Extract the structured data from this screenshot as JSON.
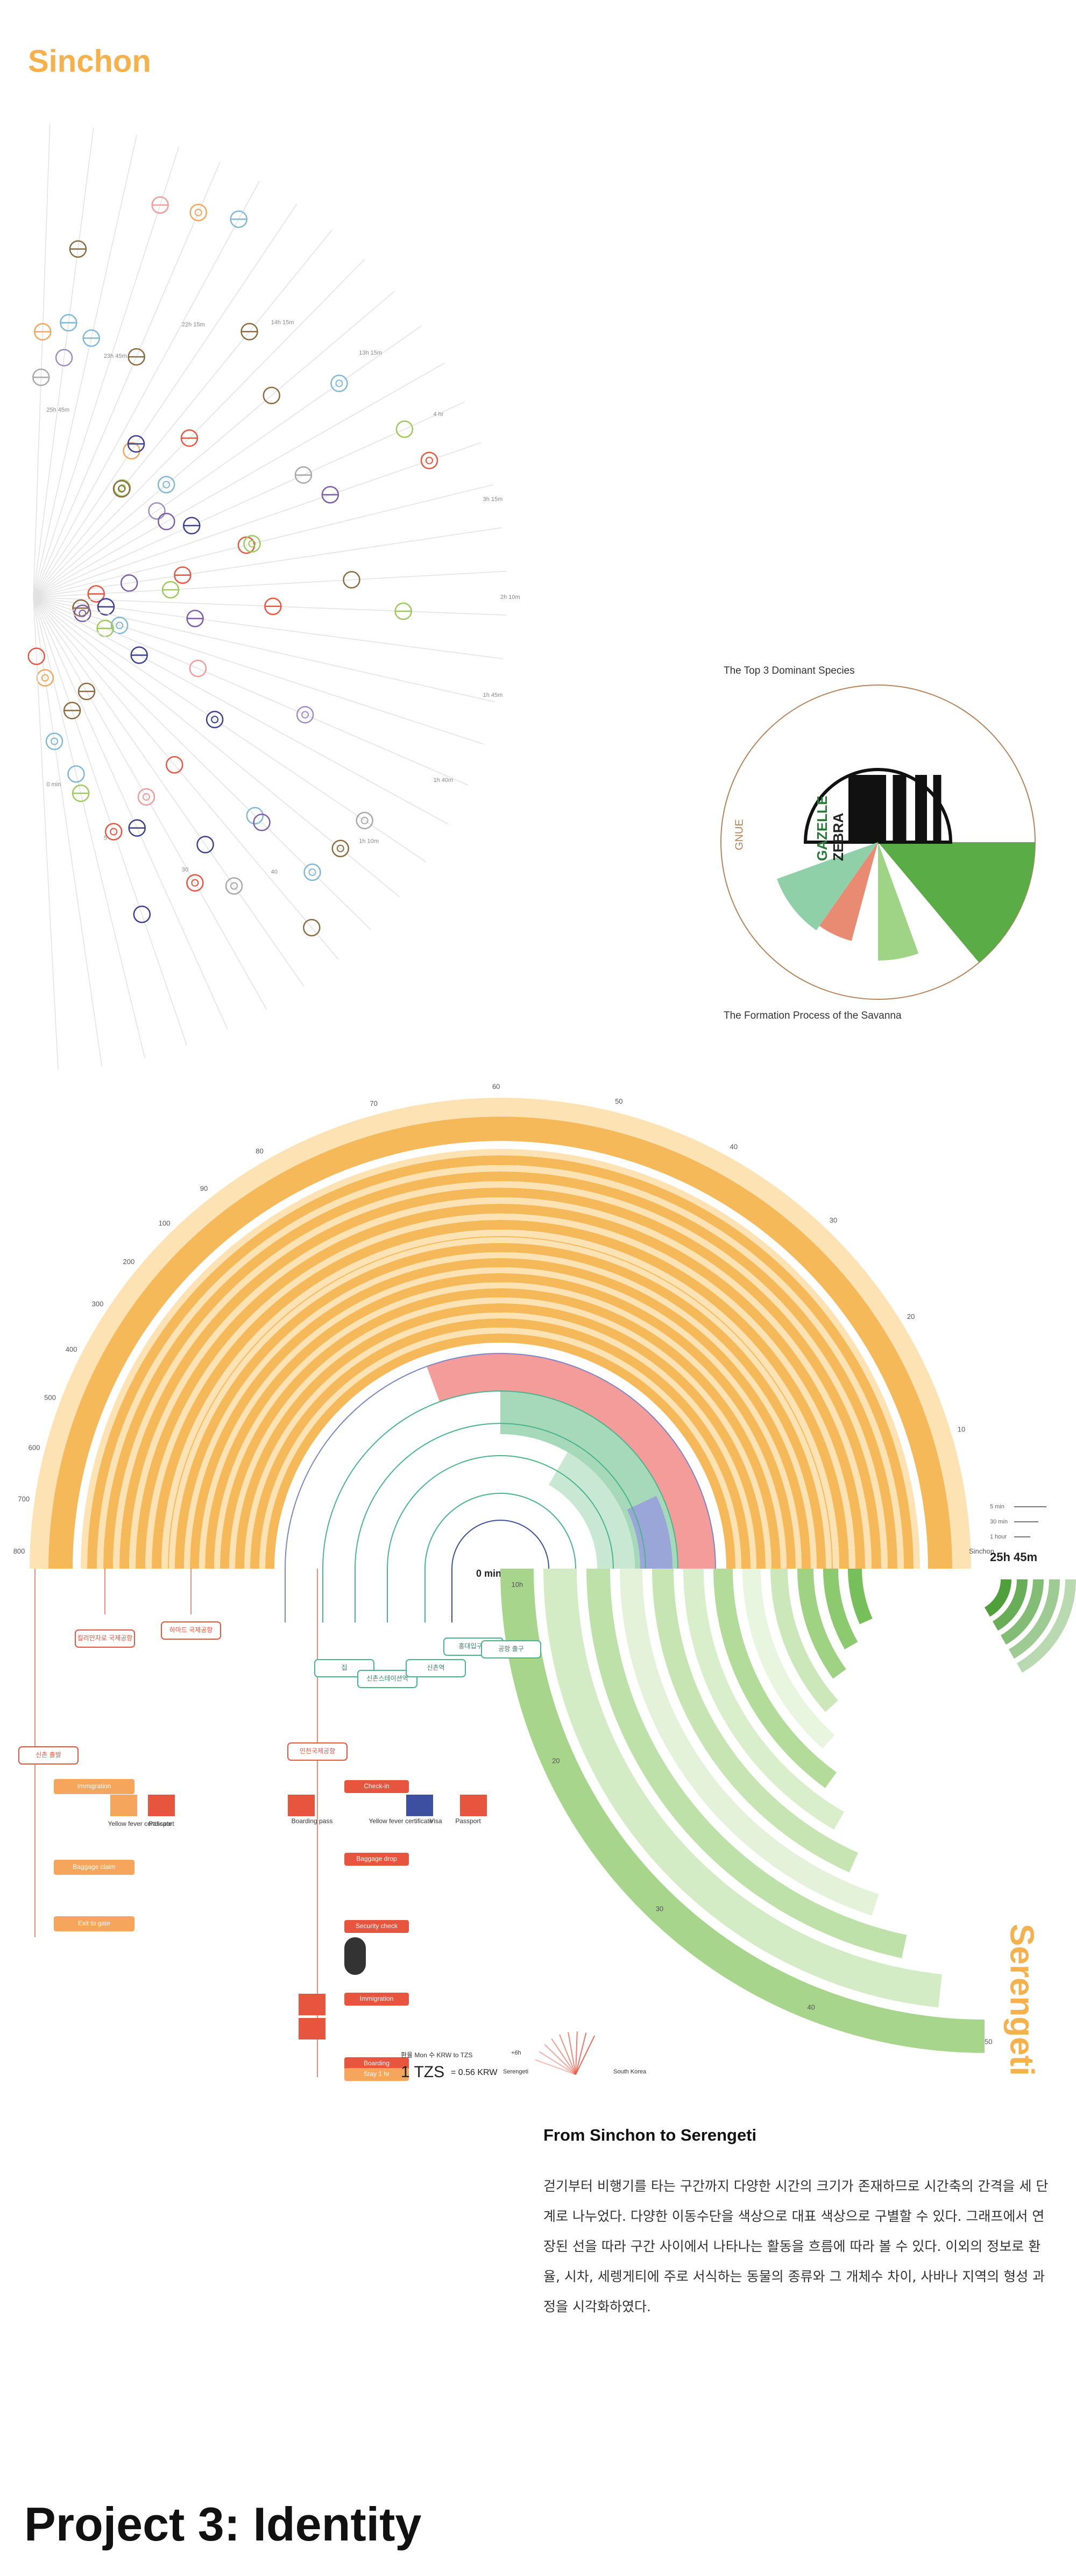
{
  "header": {
    "title": "Sinchon",
    "side_title": "Serengeti"
  },
  "fan": {
    "labels": [
      "25h 45m",
      "23h 45m",
      "22h 15m",
      "14h 15m",
      "13h 15m",
      "4 hr",
      "3h 15m",
      "2h 10m",
      "1h 45m",
      "1h 40m",
      "1h 10m",
      "40",
      "30",
      "5",
      "0 min"
    ]
  },
  "species": {
    "title": "The Top 3 Dominant Species",
    "caption": "The Formation Process of the Savanna",
    "names": [
      "GNUE",
      "GAZELLE",
      "ZEBRA"
    ]
  },
  "arc_scale": {
    "top_labels": [
      "80",
      "70",
      "60",
      "50",
      "40",
      "30",
      "20",
      "10",
      "Sinchon"
    ],
    "left_labels": [
      "90",
      "100",
      "200",
      "300",
      "400",
      "500",
      "600",
      "700",
      "800"
    ],
    "start": "0 min",
    "end": "25h 45m",
    "legend": [
      "5 min",
      "30 min",
      "1 hour"
    ],
    "lower_labels": [
      "10h",
      "20",
      "30",
      "40",
      "50"
    ]
  },
  "timeline": {
    "places": [
      "킬리만자로 국제공항",
      "하마드 국제공항",
      "인천국제공항",
      "집",
      "신촌스테이션역",
      "신촌역",
      "홍대입구역",
      "신촌 출발",
      "공항 출구"
    ],
    "left_steps": [
      "Immigration",
      "Yellow fever certificate",
      "Passport",
      "Baggage claim",
      "Exit to gate"
    ],
    "center_steps": [
      "Check-in",
      "Boarding pass",
      "Yellow fever certificate",
      "Visa",
      "Passport",
      "Baggage drop",
      "Security check",
      "Immigration",
      "Boarding",
      "Stay 1 hr"
    ]
  },
  "exchange": {
    "note": "환율 Mon 수 KRW to TZS",
    "rate_left": "1 TZS",
    "rate_right": "= 0.56 KRW",
    "from": "Serengeti",
    "to": "South Korea",
    "offset": "+6h"
  },
  "description": {
    "title": "From Sinchon to Serengeti",
    "body": "걷기부터 비행기를 타는 구간까지 다양한 시간의 크기가 존재하므로 시간축의 간격을 세 단계로 나누었다. 다양한 이동수단을 색상으로 대표 색상으로 구별할 수 있다. 그래프에서 연장된 선을 따라 구간 사이에서 나타나는 활동을 흐름에 따라 볼 수 있다. 이외의 정보로 환율, 시차, 세렝게티에 주로 서식하는 동물의 종류와 그 개체수 차이, 사바나 지역의 형성 과정을 시각화하였다."
  },
  "footer": {
    "title": "Project 3: Identity"
  }
}
